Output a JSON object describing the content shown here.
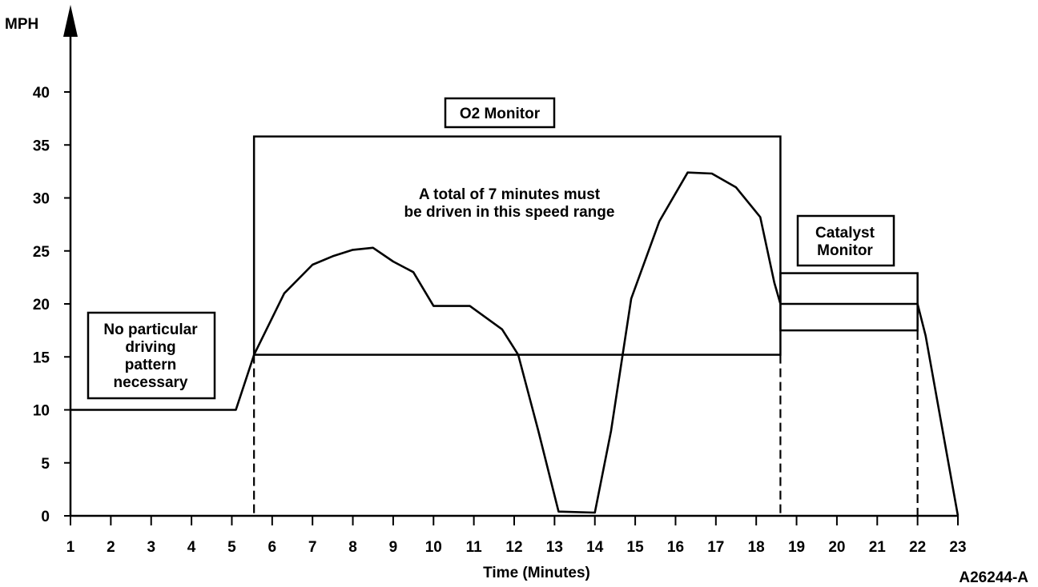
{
  "chart_data": {
    "type": "line",
    "ylabel": "MPH",
    "xlabel": "Time (Minutes)",
    "figure_id": "A26244-A",
    "xlim": [
      1,
      23
    ],
    "ylim": [
      0,
      40
    ],
    "x_ticks": [
      1,
      2,
      3,
      4,
      5,
      6,
      7,
      8,
      9,
      10,
      11,
      12,
      13,
      14,
      15,
      16,
      17,
      18,
      19,
      20,
      21,
      22,
      23
    ],
    "y_ticks": [
      0,
      5,
      10,
      15,
      20,
      25,
      30,
      35,
      40
    ],
    "series": [
      {
        "points": [
          [
            1,
            10
          ],
          [
            5.1,
            10
          ],
          [
            5.55,
            15.2
          ],
          [
            6.3,
            21
          ],
          [
            7.0,
            23.7
          ],
          [
            7.5,
            24.5
          ],
          [
            8.0,
            25.1
          ],
          [
            8.5,
            25.3
          ],
          [
            9.0,
            24
          ],
          [
            9.5,
            23
          ],
          [
            10.0,
            19.8
          ],
          [
            10.9,
            19.8
          ],
          [
            11.7,
            17.6
          ],
          [
            12.1,
            15.2
          ],
          [
            12.6,
            8
          ],
          [
            13.1,
            0.4
          ],
          [
            14.0,
            0.3
          ],
          [
            14.4,
            8
          ],
          [
            14.9,
            20.5
          ],
          [
            15.6,
            27.8
          ],
          [
            16.3,
            32.4
          ],
          [
            16.9,
            32.3
          ],
          [
            17.5,
            31.0
          ],
          [
            18.1,
            28.2
          ],
          [
            18.45,
            22
          ],
          [
            18.6,
            20
          ],
          [
            22.0,
            20
          ],
          [
            22.2,
            17
          ],
          [
            23.0,
            0
          ]
        ]
      }
    ],
    "annotations": [
      {
        "id": "o2_monitor",
        "label": "O2 Monitor",
        "note": [
          "A total of 7 minutes must",
          "be driven in this speed range"
        ],
        "x_range": [
          5.55,
          18.6
        ],
        "y_range": [
          15.2,
          35.8
        ]
      },
      {
        "id": "catalyst_monitor",
        "label": [
          "Catalyst",
          "Monitor"
        ],
        "x_range": [
          18.6,
          22.0
        ],
        "y_range": [
          17.5,
          22.9
        ]
      },
      {
        "id": "no_pattern",
        "label": [
          "No particular",
          "driving",
          "pattern",
          "necessary"
        ]
      }
    ],
    "dashed_verticals_x": [
      5.55,
      18.6,
      22.0
    ],
    "grid": false
  }
}
